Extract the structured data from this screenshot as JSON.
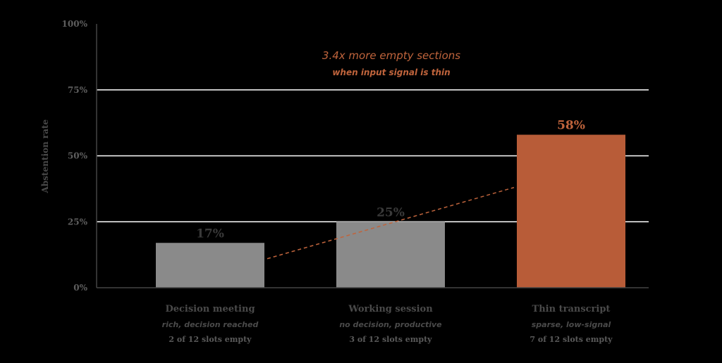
{
  "colors": {
    "background": "#000000",
    "bar_default": "#8a8a8a",
    "bar_highlight": "#b85c38",
    "accent": "#c0643c",
    "gridline": "#ffffff",
    "axis": "#444444"
  },
  "chart_data": {
    "type": "bar",
    "title": "",
    "xlabel": "",
    "ylabel": "Abstention rate",
    "ylim": [
      0,
      100
    ],
    "yticks": [
      0,
      25,
      50,
      75,
      100
    ],
    "ytick_labels": [
      "0%",
      "25%",
      "50%",
      "75%",
      "100%"
    ],
    "grid": true,
    "categories": [
      "Decision meeting",
      "Working session",
      "Thin transcript"
    ],
    "category_subtitles": [
      "rich, decision reached",
      "no decision, productive",
      "sparse, low-signal"
    ],
    "category_notes": [
      "2 of 12 slots empty",
      "3 of 12 slots empty",
      "7 of 12 slots empty"
    ],
    "values": [
      17,
      25,
      58
    ],
    "value_labels": [
      "17%",
      "25%",
      "58%"
    ],
    "highlight_index": 2,
    "annotation": {
      "title": "3.4x more empty sections",
      "subtitle": "when input signal is thin"
    },
    "trend_line": {
      "style": "dashed",
      "from_category": 0,
      "to_category": 2,
      "from_value": 11,
      "to_value": 38
    }
  }
}
